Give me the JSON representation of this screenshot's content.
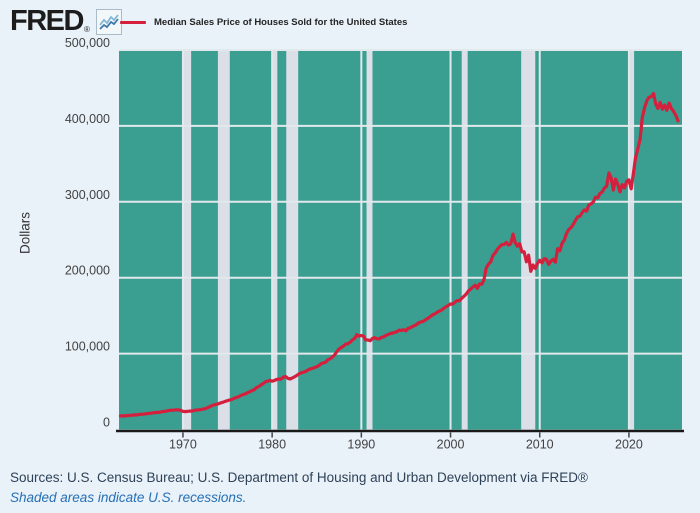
{
  "header": {
    "logo_text": "FRED",
    "registered_mark": "®",
    "icon": "line-chart-icon",
    "legend": {
      "swatch_color": "#d41f3d",
      "label": "Median Sales Price of Houses Sold for the United States"
    }
  },
  "y_axis": {
    "label": "Dollars",
    "ticks": [
      {
        "value": 0,
        "label": "0"
      },
      {
        "value": 100000,
        "label": "100,000"
      },
      {
        "value": 200000,
        "label": "200,000"
      },
      {
        "value": 300000,
        "label": "300,000"
      },
      {
        "value": 400000,
        "label": "400,000"
      },
      {
        "value": 500000,
        "label": "500,000"
      }
    ]
  },
  "x_axis": {
    "ticks": [
      {
        "value": 1970,
        "label": "1970"
      },
      {
        "value": 1980,
        "label": "1980"
      },
      {
        "value": 1990,
        "label": "1990"
      },
      {
        "value": 2000,
        "label": "2000"
      },
      {
        "value": 2010,
        "label": "2010"
      },
      {
        "value": 2020,
        "label": "2020"
      }
    ]
  },
  "footer": {
    "sources_line": "Sources: U.S. Census Bureau; U.S. Department of Housing and Urban Development via FRED®",
    "recession_note": "Shaded areas indicate U.S. recessions."
  },
  "colors": {
    "page_bg": "#e9f1f9",
    "plot_bg": "#3a9e90",
    "line": "#d41f3d",
    "recession_band": "#dadfe8",
    "gridline": "#e2e9ec",
    "axis": "#1a1a1a",
    "tick_label": "#424242"
  },
  "chart_data": {
    "type": "line",
    "title": "Median Sales Price of Houses Sold for the United States",
    "xlabel": "",
    "ylabel": "Dollars",
    "xlim": [
      1962.83,
      2025.95
    ],
    "ylim": [
      0,
      500000
    ],
    "x_ticks": [
      1970,
      1980,
      1990,
      2000,
      2010,
      2020
    ],
    "y_ticks": [
      0,
      100000,
      200000,
      300000,
      400000,
      500000
    ],
    "grid": true,
    "legend_position": "top",
    "recessions": [
      [
        1969.92,
        1970.92
      ],
      [
        1973.92,
        1975.25
      ],
      [
        1980.08,
        1980.58
      ],
      [
        1981.58,
        1982.92
      ],
      [
        1990.58,
        1991.25
      ],
      [
        2001.25,
        2001.92
      ],
      [
        2007.92,
        2009.5
      ],
      [
        2020.08,
        2020.58
      ]
    ],
    "points": [
      [
        1963.0,
        17800
      ],
      [
        1963.25,
        18000
      ],
      [
        1963.5,
        17900
      ],
      [
        1963.75,
        18500
      ],
      [
        1964.0,
        18500
      ],
      [
        1964.25,
        18900
      ],
      [
        1964.5,
        19200
      ],
      [
        1964.75,
        19100
      ],
      [
        1965.0,
        19600
      ],
      [
        1965.25,
        20000
      ],
      [
        1965.5,
        20100
      ],
      [
        1965.75,
        20600
      ],
      [
        1966.0,
        21000
      ],
      [
        1966.25,
        21400
      ],
      [
        1966.5,
        21600
      ],
      [
        1966.75,
        22200
      ],
      [
        1967.0,
        22400
      ],
      [
        1967.25,
        22500
      ],
      [
        1967.5,
        23100
      ],
      [
        1967.75,
        23700
      ],
      [
        1968.0,
        23900
      ],
      [
        1968.25,
        24700
      ],
      [
        1968.5,
        25100
      ],
      [
        1968.75,
        25400
      ],
      [
        1969.0,
        25600
      ],
      [
        1969.25,
        25900
      ],
      [
        1969.5,
        25800
      ],
      [
        1969.75,
        25300
      ],
      [
        1970.0,
        23900
      ],
      [
        1970.25,
        23600
      ],
      [
        1970.5,
        23900
      ],
      [
        1970.75,
        24300
      ],
      [
        1971.0,
        24300
      ],
      [
        1971.25,
        25100
      ],
      [
        1971.5,
        25500
      ],
      [
        1971.75,
        25900
      ],
      [
        1972.0,
        26200
      ],
      [
        1972.25,
        26900
      ],
      [
        1972.5,
        27400
      ],
      [
        1972.75,
        28900
      ],
      [
        1973.0,
        29900
      ],
      [
        1973.25,
        31500
      ],
      [
        1973.5,
        32600
      ],
      [
        1973.75,
        33200
      ],
      [
        1974.0,
        34000
      ],
      [
        1974.25,
        35200
      ],
      [
        1974.5,
        36000
      ],
      [
        1974.75,
        37100
      ],
      [
        1975.0,
        38100
      ],
      [
        1975.25,
        38900
      ],
      [
        1975.5,
        39600
      ],
      [
        1975.75,
        41200
      ],
      [
        1976.0,
        42200
      ],
      [
        1976.25,
        43400
      ],
      [
        1976.5,
        44800
      ],
      [
        1976.75,
        46200
      ],
      [
        1977.0,
        47000
      ],
      [
        1977.25,
        48500
      ],
      [
        1977.5,
        49800
      ],
      [
        1977.75,
        51400
      ],
      [
        1978.0,
        52600
      ],
      [
        1978.25,
        55200
      ],
      [
        1978.5,
        56700
      ],
      [
        1978.75,
        58700
      ],
      [
        1979.0,
        60600
      ],
      [
        1979.25,
        62900
      ],
      [
        1979.5,
        63800
      ],
      [
        1979.75,
        64700
      ],
      [
        1980.0,
        63700
      ],
      [
        1980.25,
        64600
      ],
      [
        1980.5,
        65900
      ],
      [
        1980.75,
        66400
      ],
      [
        1981.0,
        66400
      ],
      [
        1981.25,
        68900
      ],
      [
        1981.5,
        69800
      ],
      [
        1981.75,
        67400
      ],
      [
        1982.0,
        66600
      ],
      [
        1982.25,
        67900
      ],
      [
        1982.5,
        69300
      ],
      [
        1982.75,
        71200
      ],
      [
        1983.0,
        73300
      ],
      [
        1983.25,
        74700
      ],
      [
        1983.5,
        75500
      ],
      [
        1983.75,
        76600
      ],
      [
        1984.0,
        78200
      ],
      [
        1984.25,
        79900
      ],
      [
        1984.5,
        80500
      ],
      [
        1984.75,
        81600
      ],
      [
        1985.0,
        82800
      ],
      [
        1985.25,
        84300
      ],
      [
        1985.5,
        86800
      ],
      [
        1985.75,
        87800
      ],
      [
        1986.0,
        88800
      ],
      [
        1986.25,
        92000
      ],
      [
        1986.5,
        93200
      ],
      [
        1986.75,
        95500
      ],
      [
        1987.0,
        98300
      ],
      [
        1987.25,
        102700
      ],
      [
        1987.5,
        106000
      ],
      [
        1987.75,
        108000
      ],
      [
        1988.0,
        110000
      ],
      [
        1988.25,
        112500
      ],
      [
        1988.5,
        113000
      ],
      [
        1988.75,
        115000
      ],
      [
        1989.0,
        118000
      ],
      [
        1989.25,
        120000
      ],
      [
        1989.5,
        124900
      ],
      [
        1989.75,
        123000
      ],
      [
        1990.0,
        123900
      ],
      [
        1990.25,
        122900
      ],
      [
        1990.5,
        118000
      ],
      [
        1990.75,
        117900
      ],
      [
        1991.0,
        117000
      ],
      [
        1991.25,
        120000
      ],
      [
        1991.5,
        121000
      ],
      [
        1991.75,
        119500
      ],
      [
        1992.0,
        119500
      ],
      [
        1992.25,
        121500
      ],
      [
        1992.5,
        122000
      ],
      [
        1992.75,
        124000
      ],
      [
        1993.0,
        125000
      ],
      [
        1993.25,
        126500
      ],
      [
        1993.5,
        127000
      ],
      [
        1993.75,
        128000
      ],
      [
        1994.0,
        128900
      ],
      [
        1994.25,
        131000
      ],
      [
        1994.5,
        130500
      ],
      [
        1994.75,
        131500
      ],
      [
        1995.0,
        130000
      ],
      [
        1995.25,
        133500
      ],
      [
        1995.5,
        134000
      ],
      [
        1995.75,
        136000
      ],
      [
        1996.0,
        137000
      ],
      [
        1996.25,
        139000
      ],
      [
        1996.5,
        141000
      ],
      [
        1996.75,
        142000
      ],
      [
        1997.0,
        143000
      ],
      [
        1997.25,
        145000
      ],
      [
        1997.5,
        146800
      ],
      [
        1997.75,
        149000
      ],
      [
        1998.0,
        151200
      ],
      [
        1998.25,
        152500
      ],
      [
        1998.5,
        154500
      ],
      [
        1998.75,
        156000
      ],
      [
        1999.0,
        157400
      ],
      [
        1999.25,
        159800
      ],
      [
        1999.5,
        161800
      ],
      [
        1999.75,
        163500
      ],
      [
        2000.0,
        165300
      ],
      [
        2000.25,
        165300
      ],
      [
        2000.5,
        167900
      ],
      [
        2000.75,
        169800
      ],
      [
        2001.0,
        169800
      ],
      [
        2001.25,
        172900
      ],
      [
        2001.5,
        175500
      ],
      [
        2001.75,
        178300
      ],
      [
        2002.0,
        182500
      ],
      [
        2002.25,
        185000
      ],
      [
        2002.5,
        187600
      ],
      [
        2002.75,
        190100
      ],
      [
        2003.0,
        186000
      ],
      [
        2003.25,
        191900
      ],
      [
        2003.5,
        191500
      ],
      [
        2003.75,
        197700
      ],
      [
        2004.0,
        212700
      ],
      [
        2004.25,
        217800
      ],
      [
        2004.5,
        221000
      ],
      [
        2004.75,
        229300
      ],
      [
        2005.0,
        232500
      ],
      [
        2005.25,
        237500
      ],
      [
        2005.5,
        240900
      ],
      [
        2005.75,
        243600
      ],
      [
        2006.0,
        243800
      ],
      [
        2006.25,
        246500
      ],
      [
        2006.5,
        243100
      ],
      [
        2006.75,
        244700
      ],
      [
        2007.0,
        257400
      ],
      [
        2007.25,
        246200
      ],
      [
        2007.5,
        241400
      ],
      [
        2007.75,
        244800
      ],
      [
        2008.0,
        233900
      ],
      [
        2008.25,
        234300
      ],
      [
        2008.5,
        221000
      ],
      [
        2008.75,
        229600
      ],
      [
        2009.0,
        208400
      ],
      [
        2009.25,
        216700
      ],
      [
        2009.5,
        212200
      ],
      [
        2009.75,
        219000
      ],
      [
        2010.0,
        222900
      ],
      [
        2010.25,
        219600
      ],
      [
        2010.5,
        225200
      ],
      [
        2010.75,
        224300
      ],
      [
        2011.0,
        217700
      ],
      [
        2011.25,
        222000
      ],
      [
        2011.5,
        224300
      ],
      [
        2011.75,
        220400
      ],
      [
        2012.0,
        238400
      ],
      [
        2012.25,
        235400
      ],
      [
        2012.5,
        245200
      ],
      [
        2012.75,
        249700
      ],
      [
        2013.0,
        258400
      ],
      [
        2013.25,
        263400
      ],
      [
        2013.5,
        266200
      ],
      [
        2013.75,
        270200
      ],
      [
        2014.0,
        275200
      ],
      [
        2014.25,
        280200
      ],
      [
        2014.5,
        281000
      ],
      [
        2014.75,
        285800
      ],
      [
        2015.0,
        289200
      ],
      [
        2015.25,
        287800
      ],
      [
        2015.5,
        295800
      ],
      [
        2015.75,
        297400
      ],
      [
        2016.0,
        299800
      ],
      [
        2016.25,
        306000
      ],
      [
        2016.5,
        305200
      ],
      [
        2016.75,
        310900
      ],
      [
        2017.0,
        313100
      ],
      [
        2017.25,
        318200
      ],
      [
        2017.5,
        320500
      ],
      [
        2017.75,
        337900
      ],
      [
        2018.0,
        331800
      ],
      [
        2018.25,
        315600
      ],
      [
        2018.5,
        330000
      ],
      [
        2018.75,
        322800
      ],
      [
        2019.0,
        313000
      ],
      [
        2019.25,
        322500
      ],
      [
        2019.5,
        318400
      ],
      [
        2019.75,
        327100
      ],
      [
        2020.0,
        329000
      ],
      [
        2020.25,
        317100
      ],
      [
        2020.5,
        337500
      ],
      [
        2020.75,
        358700
      ],
      [
        2021.0,
        369800
      ],
      [
        2021.25,
        382600
      ],
      [
        2021.5,
        411200
      ],
      [
        2021.75,
        423600
      ],
      [
        2022.0,
        433100
      ],
      [
        2022.25,
        437700
      ],
      [
        2022.5,
        438500
      ],
      [
        2022.75,
        442600
      ],
      [
        2023.0,
        429000
      ],
      [
        2023.25,
        423000
      ],
      [
        2023.5,
        431000
      ],
      [
        2023.75,
        422000
      ],
      [
        2024.0,
        427400
      ],
      [
        2024.25,
        420600
      ],
      [
        2024.5,
        430000
      ],
      [
        2024.75,
        423000
      ],
      [
        2025.0,
        419300
      ],
      [
        2025.25,
        414000
      ],
      [
        2025.5,
        406600
      ]
    ]
  }
}
